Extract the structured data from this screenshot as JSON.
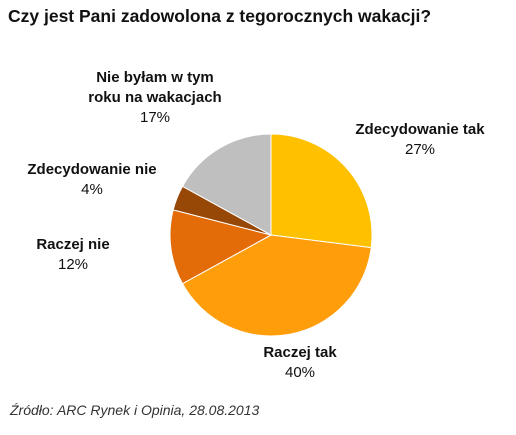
{
  "chart_data": {
    "type": "pie",
    "title": "Czy jest Pani zadowolona z tegorocznych wakacji?",
    "source": "Źródło: ARC Rynek i Opinia, 28.08.2013",
    "slices": [
      {
        "label": "Zdecydowanie tak",
        "value": 27,
        "display": "27%",
        "color": "#FFC000"
      },
      {
        "label": "Raczej tak",
        "value": 40,
        "display": "40%",
        "color": "#FF9D0A"
      },
      {
        "label": "Raczej nie",
        "value": 12,
        "display": "12%",
        "color": "#E36C09"
      },
      {
        "label": "Zdecydowanie nie",
        "value": 4,
        "display": "4%",
        "color": "#974706"
      },
      {
        "label": "Nie byłam w tym\nroku na wakacjach",
        "value": 17,
        "display": "17%",
        "color": "#BFBFBF"
      }
    ]
  }
}
